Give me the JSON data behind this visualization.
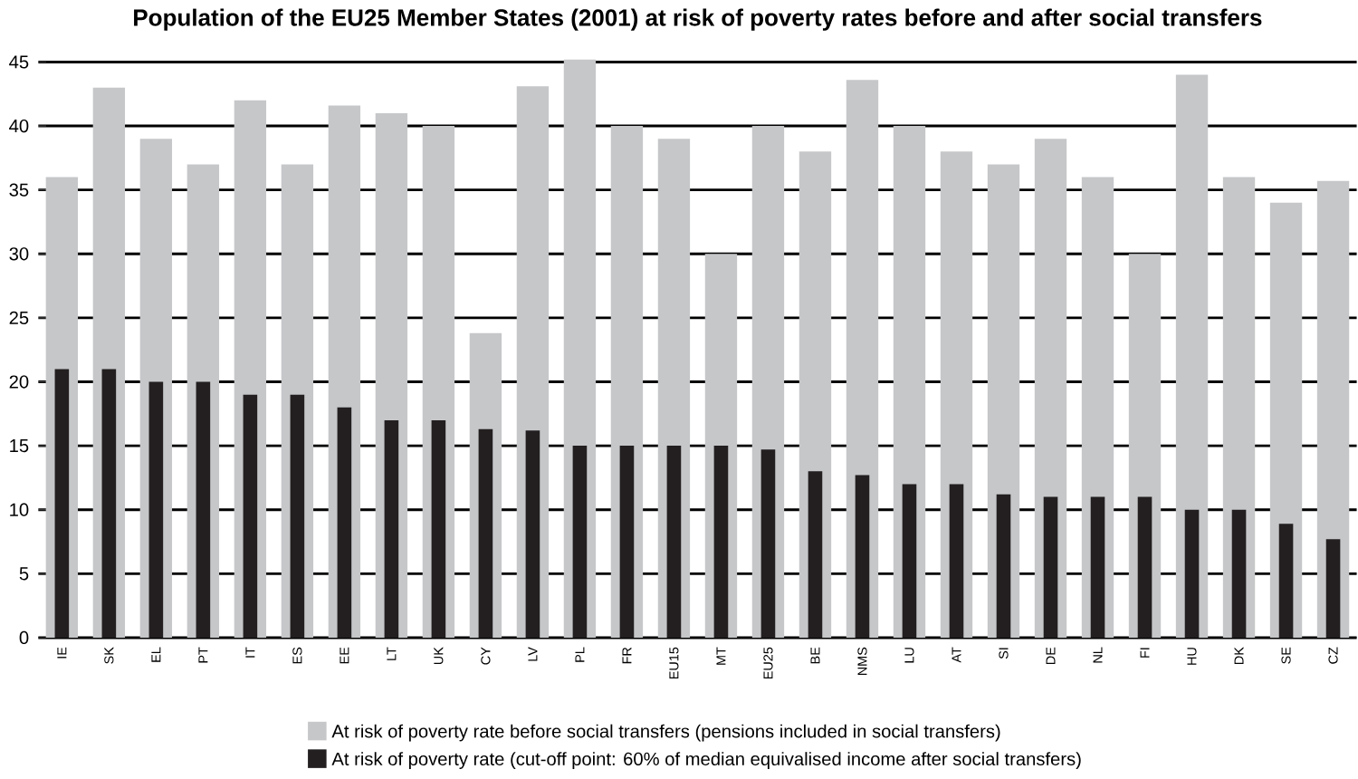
{
  "chart_data": {
    "type": "bar",
    "title": "Population of the EU25 Member States (2001) at risk of poverty rates before and after social transfers",
    "categories": [
      "IE",
      "SK",
      "EL",
      "PT",
      "IT",
      "ES",
      "EE",
      "LT",
      "UK",
      "CY",
      "LV",
      "PL",
      "FR",
      "EU15",
      "MT",
      "EU25",
      "BE",
      "NMS",
      "LU",
      "AT",
      "SI",
      "DE",
      "NL",
      "FI",
      "HU",
      "DK",
      "SE",
      "CZ"
    ],
    "series": [
      {
        "name": "At risk of poverty rate before social transfers (pensions included in social transfers)",
        "color": "#c6c7c9",
        "values": [
          36,
          43,
          39,
          37,
          42,
          37,
          41.6,
          41,
          40,
          23.8,
          43.1,
          45.2,
          40,
          39,
          30,
          40,
          38,
          43.6,
          40,
          38,
          37,
          39,
          36,
          30,
          44,
          36,
          34,
          35.7
        ]
      },
      {
        "name": "At risk of poverty rate (cut-off point: 60% of median equivalised income after social transfers)",
        "color": "#231f20",
        "values": [
          21,
          21,
          20,
          20,
          19,
          19,
          18,
          17,
          17,
          16.3,
          16.2,
          15,
          15,
          15,
          15,
          14.7,
          13,
          12.7,
          12,
          12,
          11.2,
          11,
          11,
          11,
          10,
          10,
          8.9,
          7.7
        ]
      }
    ],
    "ylim": [
      0,
      45.5
    ],
    "yticks": [
      0,
      5,
      10,
      15,
      20,
      25,
      30,
      35,
      40,
      45
    ],
    "grid": "y",
    "legend": "bottom"
  }
}
